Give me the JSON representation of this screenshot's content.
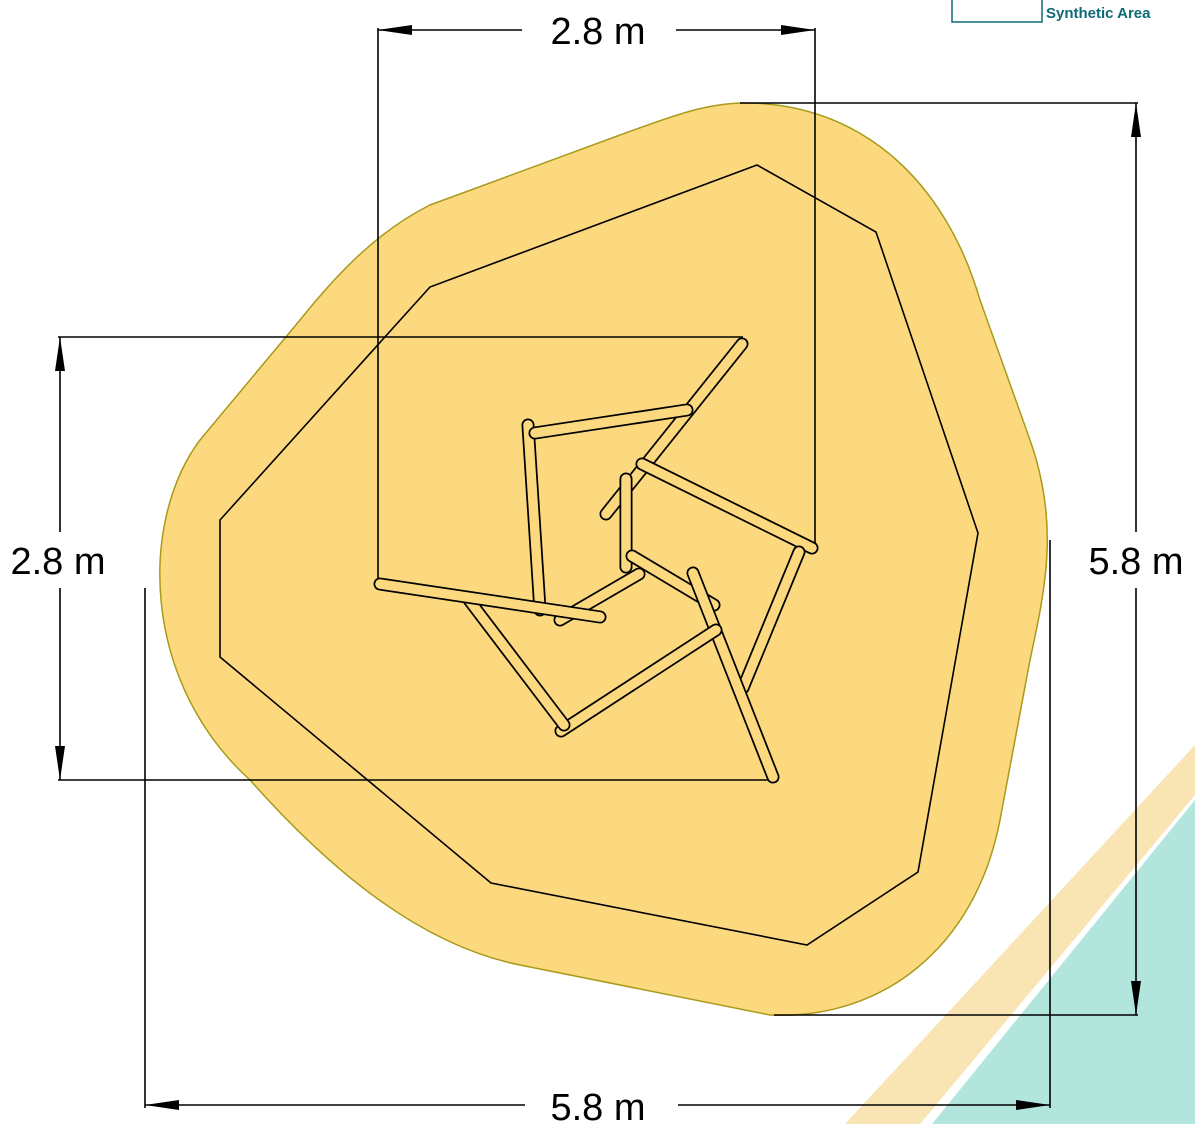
{
  "legend": {
    "label": "Synthetic Area",
    "swatch_color": "#ffffff",
    "text_color": "#0e6b75"
  },
  "dimensions": {
    "top_width": "2.8 m",
    "left_height": "2.8 m",
    "right_height": "5.8 m",
    "bottom_width": "5.8 m"
  },
  "colors": {
    "safety_area": "#fcd97e",
    "safety_area_stroke": "#a89a1a",
    "timber": "#fcd97e",
    "line": "#000000",
    "corner_teal": "#b2e5dc",
    "corner_cream": "#f9e4b3"
  },
  "icons": {
    "arrow": "triangle-arrowhead"
  }
}
